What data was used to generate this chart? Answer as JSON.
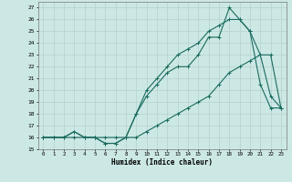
{
  "xlabel": "Humidex (Indice chaleur)",
  "background_color": "#cce8e5",
  "grid_color": "#b0ccca",
  "line_color": "#1a6b5e",
  "x_all": [
    0,
    1,
    2,
    3,
    4,
    5,
    6,
    7,
    8,
    9,
    10,
    11,
    12,
    13,
    14,
    15,
    16,
    17,
    18,
    19,
    20,
    21,
    22,
    23
  ],
  "line1_y": [
    16,
    16,
    16,
    16.5,
    16,
    16,
    15.5,
    15.5,
    16,
    18,
    19.5,
    20.5,
    21.5,
    22,
    22,
    23,
    24.5,
    24.5,
    27,
    26,
    25,
    23,
    19.5,
    18.5
  ],
  "line2_y": [
    16,
    16,
    16,
    16,
    16,
    16,
    16,
    16,
    16,
    16,
    16.5,
    17,
    17.5,
    18,
    18.5,
    19,
    19.5,
    20.5,
    21.5,
    22,
    22.5,
    23,
    23,
    18.5
  ],
  "line3_y": [
    16,
    16,
    16,
    16.5,
    16,
    16,
    15.5,
    15.5,
    16,
    18,
    20,
    21,
    22,
    23,
    23.5,
    24,
    25,
    25.5,
    26,
    26,
    25,
    20.5,
    18.5,
    18.5
  ],
  "ylim": [
    15,
    27.5
  ],
  "xlim": [
    -0.5,
    23.5
  ],
  "yticks": [
    15,
    16,
    17,
    18,
    19,
    20,
    21,
    22,
    23,
    24,
    25,
    26,
    27
  ],
  "xticks": [
    0,
    1,
    2,
    3,
    4,
    5,
    6,
    7,
    8,
    9,
    10,
    11,
    12,
    13,
    14,
    15,
    16,
    17,
    18,
    19,
    20,
    21,
    22,
    23
  ]
}
